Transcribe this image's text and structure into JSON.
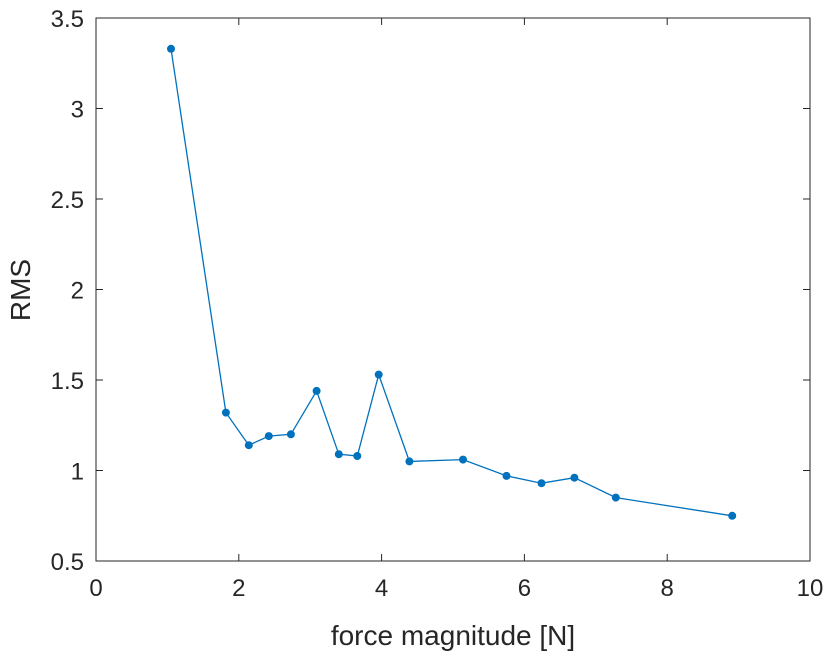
{
  "chart_data": {
    "type": "line",
    "xlabel": "force magnitude [N]",
    "ylabel": "RMS",
    "xlim": [
      0,
      10
    ],
    "ylim": [
      0.5,
      3.5
    ],
    "xticks": [
      0,
      2,
      4,
      6,
      8,
      10
    ],
    "yticks": [
      0.5,
      1,
      1.5,
      2,
      2.5,
      3,
      3.5
    ],
    "xtick_labels": [
      "0",
      "2",
      "4",
      "6",
      "8",
      "10"
    ],
    "ytick_labels": [
      "0.5",
      "1",
      "1.5",
      "2",
      "2.5",
      "3",
      "3.5"
    ],
    "grid": false,
    "color": "#0072BD",
    "series": [
      {
        "points": [
          {
            "x": 1.05,
            "y": 3.33
          },
          {
            "x": 1.82,
            "y": 1.32
          },
          {
            "x": 2.14,
            "y": 1.14
          },
          {
            "x": 2.42,
            "y": 1.19
          },
          {
            "x": 2.73,
            "y": 1.2
          },
          {
            "x": 3.09,
            "y": 1.44
          },
          {
            "x": 3.4,
            "y": 1.09
          },
          {
            "x": 3.66,
            "y": 1.08
          },
          {
            "x": 3.96,
            "y": 1.53
          },
          {
            "x": 4.39,
            "y": 1.05
          },
          {
            "x": 5.14,
            "y": 1.06
          },
          {
            "x": 5.75,
            "y": 0.97
          },
          {
            "x": 6.24,
            "y": 0.93
          },
          {
            "x": 6.7,
            "y": 0.96
          },
          {
            "x": 7.28,
            "y": 0.85
          },
          {
            "x": 8.91,
            "y": 0.75
          }
        ]
      }
    ]
  }
}
